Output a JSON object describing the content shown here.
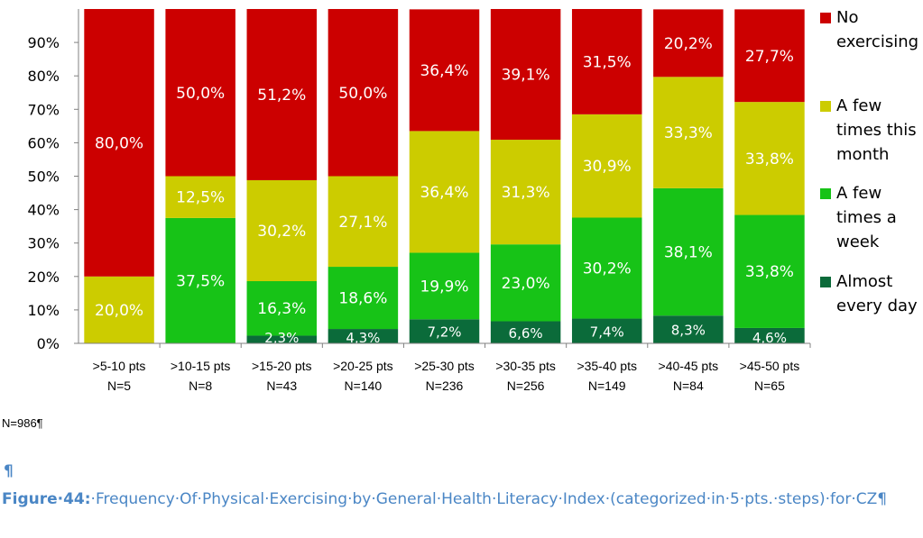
{
  "chart_data": {
    "type": "bar",
    "stacked": true,
    "percent": true,
    "categories": [
      ">5-10 pts",
      ">10-15 pts",
      ">15-20 pts",
      ">20-25 pts",
      ">25-30 pts",
      ">30-35 pts",
      ">35-40 pts",
      ">40-45 pts",
      ">45-50 pts"
    ],
    "n_labels": [
      "N=5",
      "N=8",
      "N=43",
      "N=140",
      "N=236",
      "N=256",
      "N=149",
      "N=84",
      "N=65"
    ],
    "series": [
      {
        "name": "Almost every day",
        "color": "#0b6b3a",
        "values": [
          0,
          0,
          2.3,
          4.3,
          7.2,
          6.6,
          7.4,
          8.3,
          4.6
        ],
        "labels": [
          "",
          "",
          "2,3%",
          "4,3%",
          "7,2%",
          "6,6%",
          "7,4%",
          "8,3%",
          "4,6%"
        ]
      },
      {
        "name": "A few times a week",
        "color": "#17c317",
        "values": [
          0,
          37.5,
          16.3,
          18.6,
          19.9,
          23.0,
          30.2,
          38.1,
          33.8
        ],
        "labels": [
          "",
          "37,5%",
          "16,3%",
          "18,6%",
          "19,9%",
          "23,0%",
          "30,2%",
          "38,1%",
          "33,8%"
        ]
      },
      {
        "name": "A few times this month",
        "color": "#cccc00",
        "values": [
          20.0,
          12.5,
          30.2,
          27.1,
          36.4,
          31.3,
          30.9,
          33.3,
          33.8
        ],
        "labels": [
          "20,0%",
          "12,5%",
          "30,2%",
          "27,1%",
          "36,4%",
          "31,3%",
          "30,9%",
          "33,3%",
          "33,8%"
        ]
      },
      {
        "name": "No exercising",
        "color": "#cc0000",
        "values": [
          80.0,
          50.0,
          51.2,
          50.0,
          36.4,
          39.1,
          31.5,
          20.2,
          27.7
        ],
        "labels": [
          "80,0%",
          "50,0%",
          "51,2%",
          "50,0%",
          "36,4%",
          "39,1%",
          "31,5%",
          "20,2%",
          "27,7%"
        ]
      }
    ],
    "legend": [
      {
        "lines": [
          "No",
          "exercising"
        ],
        "color": "#cc0000"
      },
      {
        "lines": [
          "A few",
          "times this",
          "month"
        ],
        "color": "#cccc00"
      },
      {
        "lines": [
          "A few",
          "times a",
          "week"
        ],
        "color": "#17c317"
      },
      {
        "lines": [
          "Almost",
          "every day"
        ],
        "color": "#0b6b3a"
      }
    ],
    "y_ticks": [
      "0%",
      "10%",
      "20%",
      "30%",
      "40%",
      "50%",
      "60%",
      "70%",
      "80%",
      "90%"
    ],
    "ylim": [
      0,
      100
    ],
    "legend_position": "right"
  },
  "note": "N=986¶",
  "pilcrow": "¶",
  "caption": {
    "label": "Figure·44:",
    "text": "·Frequency·Of·Physical·Exercising·by·General·Health·Literacy·Index·(categorized·in·5·pts.·steps)·for·CZ¶"
  }
}
